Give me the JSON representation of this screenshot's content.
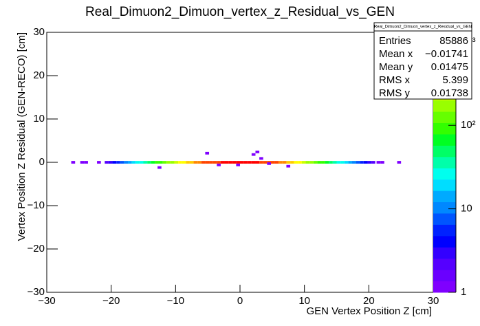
{
  "chart_data": {
    "type": "heatmap",
    "title": "Real_Dimuon2_Dimuon_vertex_z_Residual_vs_GEN",
    "x_label": "GEN Vertex Position Z [cm]",
    "y_label": "Vertex Position Z Residual (GEN-RECO) [cm]",
    "xlim": [
      -30,
      30
    ],
    "ylim": [
      -30,
      30
    ],
    "zlim": [
      1,
      1300
    ],
    "z_log": true,
    "xbin_width": 0.6,
    "ybin_width": 0.6,
    "xticks": [
      {
        "value": -30,
        "label": "−30"
      },
      {
        "value": -20,
        "label": "−20"
      },
      {
        "value": -10,
        "label": "−10"
      },
      0,
      10,
      20,
      30
    ],
    "yticks": [
      {
        "value": -30,
        "label": "−30"
      },
      {
        "value": -20,
        "label": "−20"
      },
      {
        "value": -10,
        "label": "−10"
      },
      0,
      10,
      20,
      30
    ],
    "zticks": [
      1,
      10,
      {
        "value": 100,
        "label": "10²"
      },
      {
        "value": 1000,
        "label": "10³"
      }
    ],
    "palette": [
      "#7f00ff",
      "#6a00ff",
      "#5500ff",
      "#3300ff",
      "#0000ff",
      "#0022ff",
      "#0055ff",
      "#0088ff",
      "#00aaff",
      "#00ddff",
      "#00ffee",
      "#00ffaa",
      "#00ff66",
      "#00ff22",
      "#33ff00",
      "#66ff00",
      "#99ff00",
      "#ccff00",
      "#ffff00",
      "#ffcc00",
      "#ff8800",
      "#ff4400",
      "#ff0000"
    ],
    "x": [
      -20.7,
      -20.1,
      -19.5,
      -18.9,
      -18.3,
      -17.7,
      -17.1,
      -16.5,
      -15.9,
      -15.3,
      -14.7,
      -14.1,
      -13.5,
      -12.9,
      -12.3,
      -11.7,
      -11.1,
      -10.5,
      -9.9,
      -9.3,
      -8.7,
      -8.1,
      -7.5,
      -6.9,
      -6.3,
      -5.7,
      -5.1,
      -4.5,
      -3.9,
      -3.3,
      -2.7,
      -2.1,
      -1.5,
      -0.9,
      -0.3,
      0.3,
      0.9,
      1.5,
      2.1,
      2.7,
      3.3,
      3.9,
      4.5,
      5.1,
      5.7,
      6.3,
      6.9,
      7.5,
      8.1,
      8.7,
      9.3,
      9.9,
      10.5,
      11.1,
      11.7,
      12.3,
      12.9,
      13.5,
      14.1,
      14.7,
      15.3,
      15.9,
      16.5,
      17.1,
      17.7,
      18.3,
      18.9,
      19.5,
      20.1,
      20.7,
      -25.9,
      -24.5,
      -23.9,
      -21.9,
      21.5,
      22.1,
      24.7,
      -5.1,
      2.1,
      2.7,
      -12.5,
      7.5,
      3.3,
      -3.3,
      4.5,
      -0.3
    ],
    "y": [
      0,
      0,
      0,
      0,
      0,
      0,
      0,
      0,
      0,
      0,
      0,
      0,
      0,
      0,
      0,
      0,
      0,
      0,
      0,
      0,
      0,
      0,
      0,
      0,
      0,
      0,
      0,
      0,
      0,
      0,
      0,
      0,
      0,
      0,
      0,
      0,
      0,
      0,
      0,
      0,
      0,
      0,
      0,
      0,
      0,
      0,
      0,
      0,
      0,
      0,
      0,
      0,
      0,
      0,
      0,
      0,
      0,
      0,
      0,
      0,
      0,
      0,
      0,
      0,
      0,
      0,
      0,
      0,
      0,
      0,
      0,
      0,
      0,
      0,
      0,
      0,
      0,
      2.1,
      1.8,
      2.4,
      -1.2,
      -0.9,
      0.9,
      -0.6,
      -0.3,
      -0.6
    ],
    "values": [
      2,
      3,
      4,
      6,
      8,
      10,
      14,
      18,
      24,
      30,
      40,
      50,
      64,
      80,
      100,
      130,
      160,
      200,
      250,
      300,
      360,
      420,
      490,
      560,
      630,
      700,
      770,
      830,
      880,
      930,
      970,
      1000,
      1030,
      1050,
      1070,
      1070,
      1050,
      1030,
      1000,
      970,
      930,
      880,
      830,
      770,
      700,
      630,
      560,
      490,
      420,
      360,
      300,
      250,
      200,
      160,
      130,
      100,
      80,
      64,
      50,
      40,
      30,
      24,
      18,
      14,
      10,
      8,
      6,
      4,
      3,
      2,
      1,
      1,
      1,
      1,
      1,
      1,
      1,
      1,
      1,
      1,
      1,
      1,
      1,
      1,
      1,
      1
    ],
    "stats": {
      "title": "Real_Dimuon2_Dimuon_vertex_z_Residual_vs_GEN",
      "names": [
        "Entries",
        "Mean x",
        "Mean y",
        "RMS x",
        "RMS y"
      ],
      "values": [
        85886,
        -0.01741,
        0.01475,
        5.399,
        0.01738
      ],
      "value_labels": [
        "85886",
        "−0.01741",
        "0.01475",
        "5.399",
        "0.01738"
      ]
    }
  }
}
